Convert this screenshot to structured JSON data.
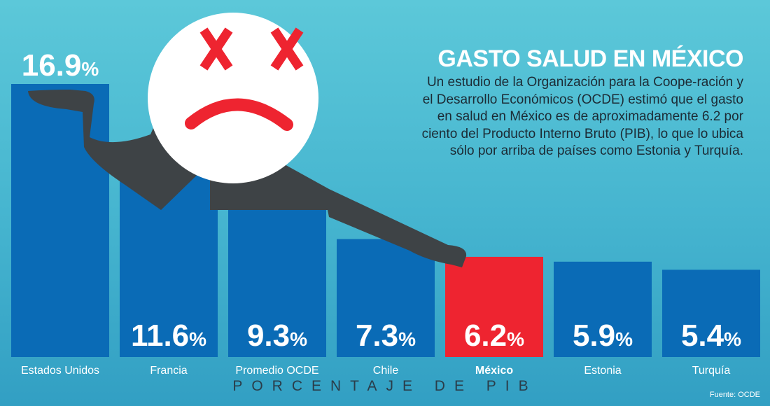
{
  "title": "GASTO SALUD EN MÉXICO",
  "description": "Un estudio de la Organización para la Coope-ración y el Desarrollo Económicos (OCDE) estimó que el gasto en salud en México es de aproximadamente 6.2 por ciento del Producto Interno Bruto (PIB), lo que lo ubica sólo por arriba de países como Estonia y Turquía.",
  "axis_title": "PORCENTAJE DE PIB",
  "source": "Fuente: OCDE",
  "colors": {
    "bar": "#0a6bb6",
    "highlight": "#ee2430",
    "face": "#ffffff",
    "face_marks": "#ee2430",
    "arm": "#3e4346"
  },
  "chart_data": {
    "type": "bar",
    "categories": [
      "Estados Unidos",
      "Francia",
      "Promedio OCDE",
      "Chile",
      "México",
      "Estonia",
      "Turquía"
    ],
    "values": [
      16.9,
      11.6,
      9.3,
      7.3,
      6.2,
      5.9,
      5.4
    ],
    "labels": [
      "16.9%",
      "11.6%",
      "9.3%",
      "7.3%",
      "6.2%",
      "5.9%",
      "5.4%"
    ],
    "highlight_category": "México",
    "ylim": [
      0,
      18
    ],
    "grid": false,
    "legend": "none"
  }
}
